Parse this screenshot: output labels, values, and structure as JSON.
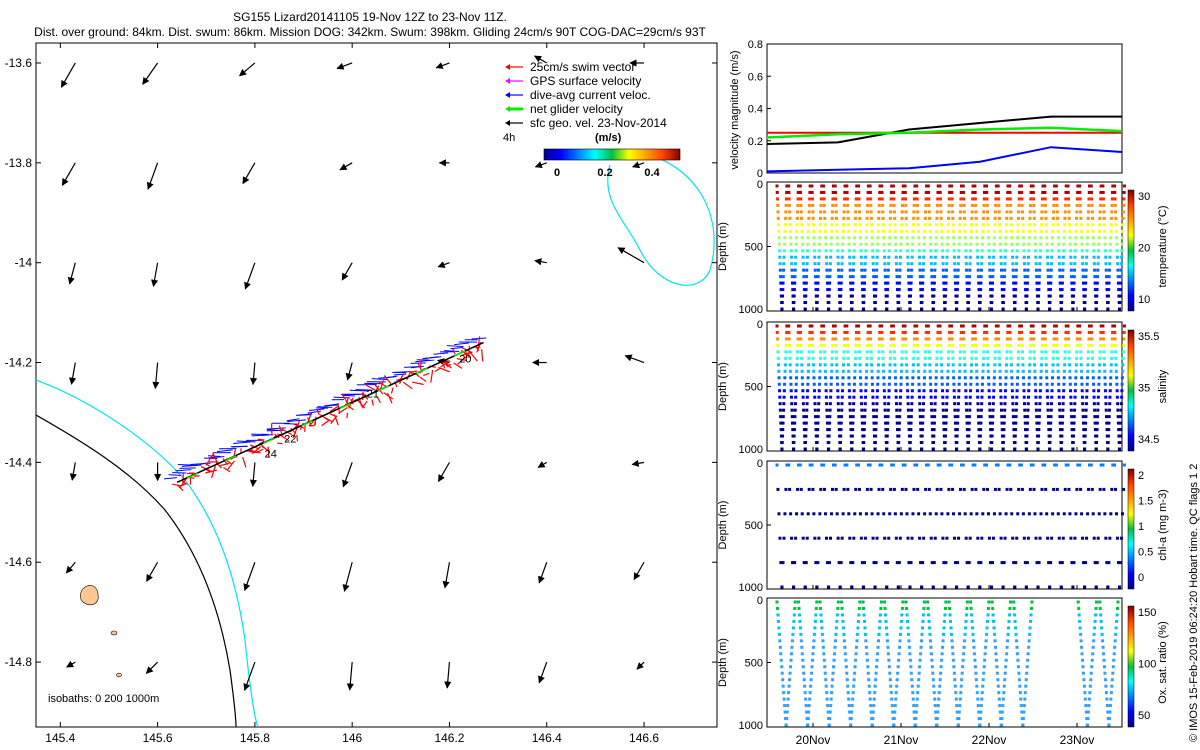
{
  "header": {
    "title": "SG155 Lizard20141105 19-Nov 12Z to 23-Nov 11Z.",
    "subtitle": "Dist. over ground: 84km. Dist. swum: 86km. Mission DOG: 342km. Swum: 398km. Gliding 24cm/s 90T COG-DAC=29cm/s 93T"
  },
  "credit": "© IMOS 15-Feb-2019 06:24:20 Hobart time. QC flags 1  2",
  "colors": {
    "red": "#ff0000",
    "magenta": "#ff00ff",
    "blue": "#0000ff",
    "green": "#00ee00",
    "black": "#000000",
    "cyan": "#00e5ee",
    "reef": "#ffc890"
  },
  "map": {
    "legend": [
      {
        "label": "25cm/s swim vector",
        "color": "#ff0000"
      },
      {
        "label": "GPS surface velocity",
        "color": "#ff00ff"
      },
      {
        "label": "dive-avg current veloc.",
        "color": "#0000ff"
      },
      {
        "label": "net glider velocity",
        "color": "#00ee00"
      },
      {
        "label": "sfc geo. vel. 23-Nov-2014",
        "color": "#000000"
      }
    ],
    "vec_legend_label": "4h",
    "colorbar": {
      "title": "(m/s)",
      "ticks": [
        "0",
        "0.2",
        "0.4"
      ]
    },
    "isobaths_label": "isobaths: 0   200  1000m",
    "x_ticks": [
      "145.4",
      "145.6",
      "145.8",
      "146",
      "146.2",
      "146.4",
      "146.6"
    ],
    "y_ticks": [
      "-13.6",
      "-13.8",
      "-14",
      "-14.2",
      "-14.4",
      "-14.6",
      "-14.8"
    ],
    "track_day_labels": [
      "20",
      "21",
      "22",
      "24"
    ]
  },
  "panels": {
    "velocity": {
      "ylabel": "velocity magnitude (m/s)",
      "y_ticks": [
        "0",
        "0.2",
        "0.4",
        "0.6",
        "0.8"
      ]
    },
    "temperature": {
      "ylabel": "Depth (m)",
      "cb_label": "temperature (°C)",
      "y_ticks": [
        "0",
        "500",
        "1000"
      ],
      "cb_ticks": [
        "30",
        "20",
        "10"
      ]
    },
    "salinity": {
      "ylabel": "Depth (m)",
      "cb_label": "salinity",
      "y_ticks": [
        "0",
        "500",
        "1000"
      ],
      "cb_ticks": [
        "35.5",
        "35",
        "34.5"
      ]
    },
    "chla": {
      "ylabel": "Depth (m)",
      "cb_label": "chl-a (mg m-3)",
      "y_ticks": [
        "0",
        "500",
        "1000"
      ],
      "cb_ticks": [
        "2",
        "1.5",
        "1",
        "0.5",
        "0"
      ]
    },
    "oxygen": {
      "ylabel": "Depth (m)",
      "cb_label": "Ox. sat. ratio (%)",
      "y_ticks": [
        "0",
        "500",
        "1000"
      ],
      "cb_ticks": [
        "150",
        "100",
        "50"
      ]
    },
    "x_ticks": [
      "20Nov",
      "21Nov",
      "22Nov",
      "23Nov"
    ]
  },
  "chart_data": [
    {
      "type": "scatter",
      "title": "SG155 Lizard20141105 19-Nov 12Z to 23-Nov 11Z.",
      "xlim": [
        145.35,
        146.75
      ],
      "ylim": [
        -14.93,
        -13.56
      ],
      "x_ticks": [
        145.4,
        145.6,
        145.8,
        146.0,
        146.2,
        146.4,
        146.6
      ],
      "y_ticks": [
        -13.6,
        -13.8,
        -14.0,
        -14.2,
        -14.4,
        -14.6,
        -14.8
      ],
      "glider_track": {
        "start": [
          145.64,
          -14.44
        ],
        "end": [
          146.27,
          -14.16
        ],
        "day_labels": [
          {
            "label": "20",
            "x": 146.22,
            "y": -14.2
          },
          {
            "label": "21",
            "x": 146.03,
            "y": -14.27
          },
          {
            "label": "22",
            "x": 145.86,
            "y": -14.36
          },
          {
            "label": "24",
            "x": 145.82,
            "y": -14.39
          }
        ]
      },
      "current_vectors": {
        "lon": [
          145.4,
          145.6,
          145.8,
          146.0,
          146.2,
          146.4,
          146.6
        ],
        "lat": [
          -13.6,
          -13.8,
          -14.0,
          -14.2,
          -14.4,
          -14.6,
          -14.8
        ],
        "note": "sfc geo. vel. 23-Nov-2014"
      }
    },
    {
      "type": "line",
      "ylabel": "velocity magnitude (m/s)",
      "ylim": [
        0,
        0.8
      ],
      "x": [
        "19Nov12Z",
        "20Nov",
        "21Nov",
        "22Nov",
        "23Nov",
        "23Nov11Z"
      ],
      "series": [
        {
          "color": "#000000",
          "values": [
            0.18,
            0.19,
            0.27,
            0.31,
            0.35,
            0.35
          ]
        },
        {
          "color": "#ff0000",
          "values": [
            0.25,
            0.25,
            0.25,
            0.25,
            0.25,
            0.25
          ]
        },
        {
          "color": "#0000ff",
          "values": [
            0.01,
            0.02,
            0.03,
            0.07,
            0.16,
            0.13
          ]
        },
        {
          "color": "#00ee00",
          "values": [
            0.22,
            0.24,
            0.25,
            0.27,
            0.28,
            0.26
          ]
        }
      ]
    },
    {
      "type": "scatter",
      "ylabel": "Depth (m)",
      "ylim": [
        1000,
        0
      ],
      "colorbar": "temperature (°C)",
      "clim": [
        5,
        30
      ],
      "x_ticks": [
        "20Nov",
        "21Nov",
        "22Nov",
        "23Nov"
      ]
    },
    {
      "type": "scatter",
      "ylabel": "Depth (m)",
      "ylim": [
        1000,
        0
      ],
      "colorbar": "salinity",
      "clim": [
        34.3,
        35.9
      ],
      "x_ticks": [
        "20Nov",
        "21Nov",
        "22Nov",
        "23Nov"
      ]
    },
    {
      "type": "scatter",
      "ylabel": "Depth (m)",
      "ylim": [
        1000,
        0
      ],
      "colorbar": "chl-a (mg m-3)",
      "clim": [
        0,
        2
      ],
      "x_ticks": [
        "20Nov",
        "21Nov",
        "22Nov",
        "23Nov"
      ]
    },
    {
      "type": "scatter",
      "ylabel": "Depth (m)",
      "ylim": [
        1000,
        0
      ],
      "colorbar": "Ox. sat. ratio (%)",
      "clim": [
        20,
        175
      ],
      "x_ticks": [
        "20Nov",
        "21Nov",
        "22Nov",
        "23Nov"
      ]
    }
  ]
}
